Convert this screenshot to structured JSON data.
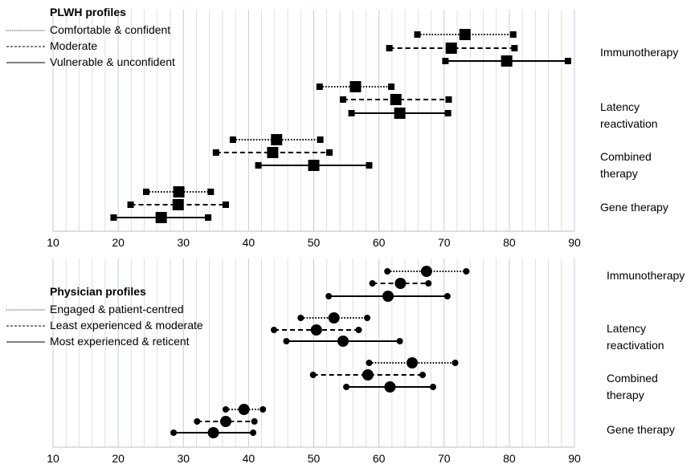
{
  "chart_data": [
    {
      "type": "forest",
      "legend_title": "PLWH profiles",
      "marker": "square",
      "profiles": [
        {
          "name": "Comfortable & confident",
          "style": "dotted"
        },
        {
          "name": "Moderate",
          "style": "dashed"
        },
        {
          "name": "Vulnerable & unconfident",
          "style": "solid"
        }
      ],
      "categories": [
        "Immunotherapy",
        "Latency reactivation",
        "Combined therapy",
        "Gene therapy"
      ],
      "xlim": [
        10,
        90
      ],
      "xticks": [
        10,
        20,
        30,
        40,
        50,
        60,
        70,
        80,
        90
      ],
      "grid": "vertical",
      "data": {
        "Immunotherapy": [
          [
            65.9,
            73.2,
            80.6
          ],
          [
            61.6,
            71.1,
            80.8
          ],
          [
            70.2,
            79.6,
            89.0
          ]
        ],
        "Latency reactivation": [
          [
            50.9,
            56.4,
            61.9
          ],
          [
            54.5,
            62.6,
            70.7
          ],
          [
            55.8,
            63.2,
            70.6
          ]
        ],
        "Combined therapy": [
          [
            37.6,
            44.3,
            51.0
          ],
          [
            35.0,
            43.7,
            52.4
          ],
          [
            41.5,
            50.0,
            58.5
          ]
        ],
        "Gene therapy": [
          [
            24.3,
            29.3,
            34.2
          ],
          [
            21.9,
            29.2,
            36.5
          ],
          [
            19.3,
            26.6,
            33.8
          ]
        ]
      }
    },
    {
      "type": "forest",
      "legend_title": "Physician profiles",
      "marker": "circle",
      "profiles": [
        {
          "name": "Engaged & patient-centred",
          "style": "dotted"
        },
        {
          "name": "Least experienced & moderate",
          "style": "dashed"
        },
        {
          "name": "Most experienced & reticent",
          "style": "solid"
        }
      ],
      "categories": [
        "Immunotherapy",
        "Latency reactivation",
        "Combined therapy",
        "Gene therapy"
      ],
      "xlim": [
        10,
        90
      ],
      "xticks": [
        10,
        20,
        30,
        40,
        50,
        60,
        70,
        80,
        90
      ],
      "grid": "vertical",
      "data": {
        "Immunotherapy": [
          [
            61.3,
            67.3,
            73.4
          ],
          [
            59.0,
            63.3,
            67.6
          ],
          [
            52.3,
            61.4,
            70.5
          ]
        ],
        "Latency reactivation": [
          [
            48.0,
            53.1,
            58.2
          ],
          [
            43.9,
            50.4,
            56.9
          ],
          [
            45.8,
            54.5,
            63.2
          ]
        ],
        "Combined therapy": [
          [
            58.5,
            65.1,
            71.7
          ],
          [
            49.9,
            58.3,
            66.7
          ],
          [
            55.0,
            61.7,
            68.3
          ]
        ],
        "Gene therapy": [
          [
            36.5,
            39.3,
            42.2
          ],
          [
            32.1,
            36.5,
            40.9
          ],
          [
            28.5,
            34.6,
            40.7
          ]
        ]
      }
    }
  ]
}
